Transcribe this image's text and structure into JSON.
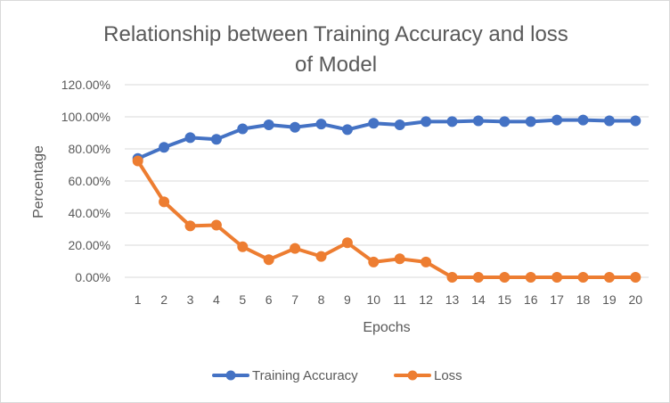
{
  "chart_data": {
    "type": "line",
    "title_line1": "Relationship between Training Accuracy and loss",
    "title_line2": "of Model",
    "xlabel": "Epochs",
    "ylabel": "Percentage",
    "x": [
      1,
      2,
      3,
      4,
      5,
      6,
      7,
      8,
      9,
      10,
      11,
      12,
      13,
      14,
      15,
      16,
      17,
      18,
      19,
      20
    ],
    "ylim": [
      0,
      1.2
    ],
    "yticks": [
      0,
      0.2,
      0.4,
      0.6,
      0.8,
      1.0,
      1.2
    ],
    "ytick_labels": [
      "0.00%",
      "20.00%",
      "40.00%",
      "60.00%",
      "80.00%",
      "100.00%",
      "120.00%"
    ],
    "grid": true,
    "legend_position": "bottom",
    "series": [
      {
        "name": "Training Accuracy",
        "color": "#4472c4",
        "values": [
          0.74,
          0.81,
          0.87,
          0.86,
          0.925,
          0.95,
          0.935,
          0.955,
          0.92,
          0.96,
          0.95,
          0.97,
          0.97,
          0.975,
          0.97,
          0.97,
          0.98,
          0.98,
          0.975,
          0.975
        ]
      },
      {
        "name": "Loss",
        "color": "#ed7d31",
        "values": [
          0.725,
          0.47,
          0.32,
          0.325,
          0.19,
          0.11,
          0.18,
          0.13,
          0.215,
          0.095,
          0.115,
          0.095,
          0.0,
          0.0,
          0.0,
          0.0,
          0.0,
          0.0,
          0.0,
          0.0
        ]
      }
    ]
  }
}
